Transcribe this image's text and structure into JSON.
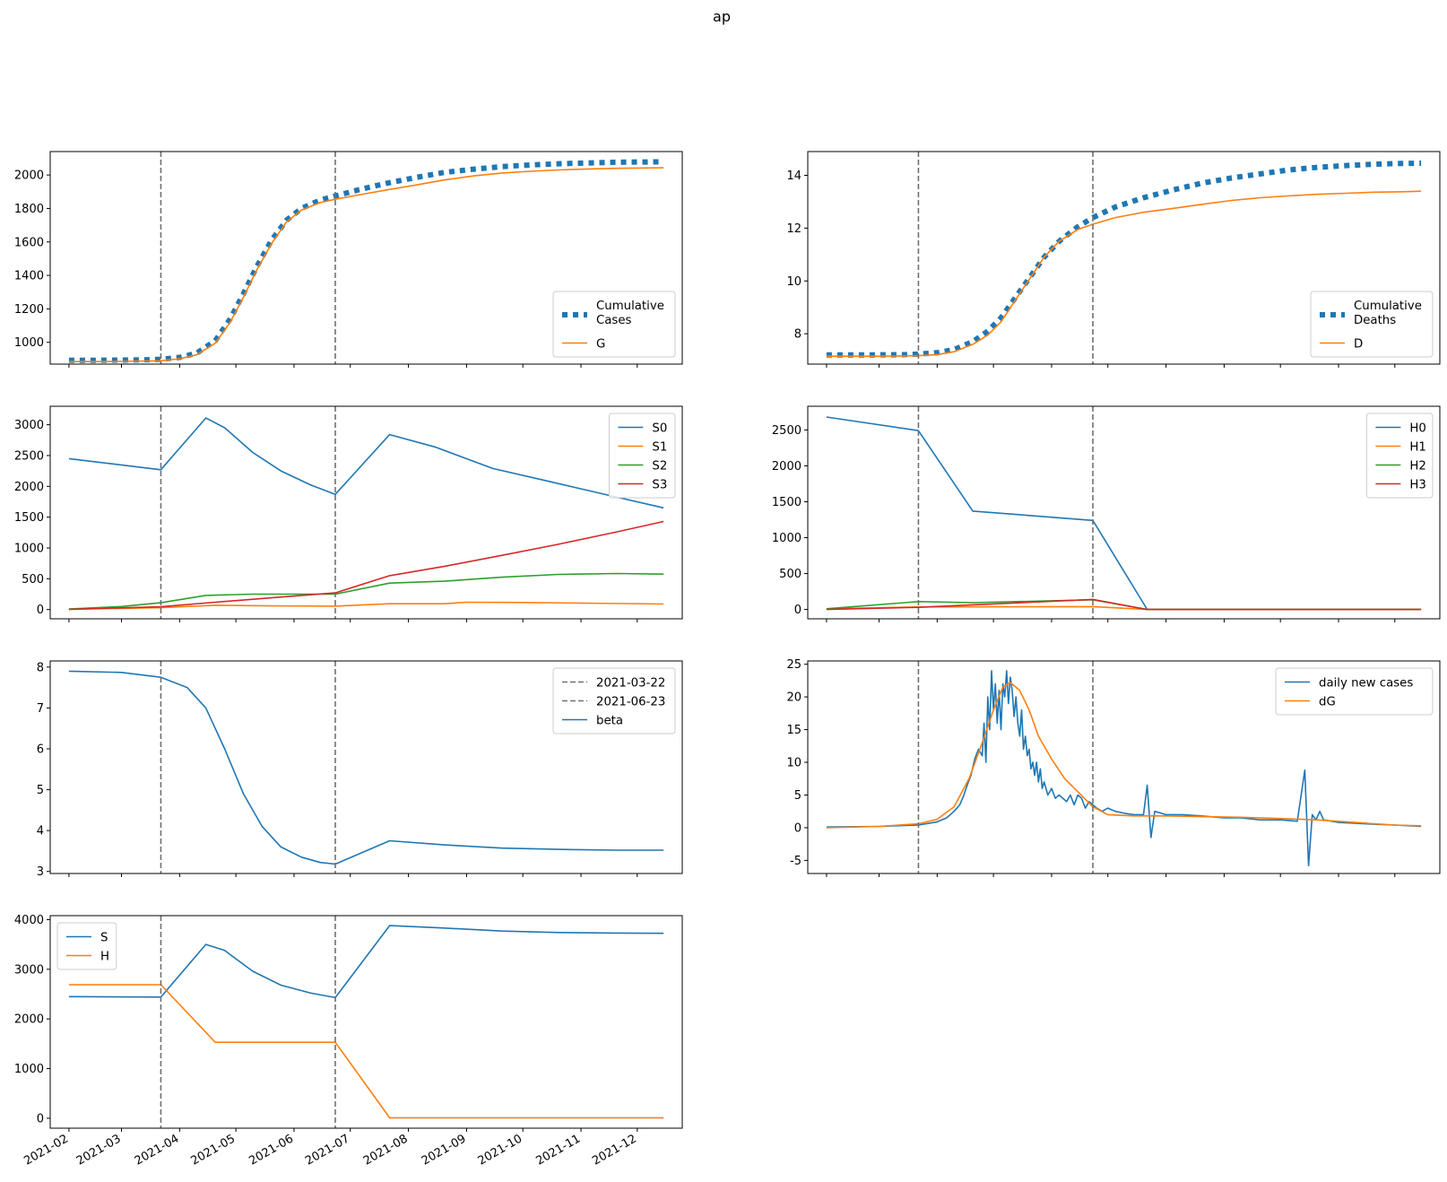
{
  "figure": {
    "title": "ap"
  },
  "colors": {
    "blue": "#1f77b4",
    "orange": "#ff7f0e",
    "green": "#2ca02c",
    "red": "#d62728",
    "vline": "#707070"
  },
  "vlines": [
    "2021-03-22",
    "2021-06-23"
  ],
  "chart_data": [
    {
      "id": "cases",
      "type": "line",
      "ylim": [
        870,
        2140
      ],
      "yticks": [
        1000,
        1200,
        1400,
        1600,
        1800,
        2000
      ],
      "legend_placement": "lower right",
      "series": [
        {
          "name": "Cumulative\nCases",
          "color": "blue",
          "style": "dotted-thick",
          "x": [
            "2021-02-01",
            "2021-02-15",
            "2021-03-01",
            "2021-03-15",
            "2021-03-22",
            "2021-04-01",
            "2021-04-10",
            "2021-04-20",
            "2021-04-28",
            "2021-05-05",
            "2021-05-12",
            "2021-05-20",
            "2021-05-28",
            "2021-06-05",
            "2021-06-15",
            "2021-06-23",
            "2021-07-05",
            "2021-07-20",
            "2021-08-05",
            "2021-08-20",
            "2021-09-05",
            "2021-09-20",
            "2021-10-05",
            "2021-10-20",
            "2021-11-05",
            "2021-11-20",
            "2021-12-05",
            "2021-12-15"
          ],
          "y": [
            893,
            893,
            894,
            896,
            899,
            910,
            935,
            1010,
            1140,
            1290,
            1450,
            1610,
            1730,
            1800,
            1850,
            1875,
            1910,
            1950,
            1985,
            2015,
            2035,
            2050,
            2060,
            2067,
            2072,
            2076,
            2078,
            2079
          ]
        },
        {
          "name": "G",
          "color": "orange",
          "style": "solid",
          "x": [
            "2021-02-01",
            "2021-02-15",
            "2021-03-01",
            "2021-03-15",
            "2021-03-22",
            "2021-04-01",
            "2021-04-10",
            "2021-04-20",
            "2021-04-28",
            "2021-05-05",
            "2021-05-12",
            "2021-05-20",
            "2021-05-28",
            "2021-06-05",
            "2021-06-15",
            "2021-06-23",
            "2021-07-05",
            "2021-07-20",
            "2021-08-05",
            "2021-08-20",
            "2021-09-05",
            "2021-09-20",
            "2021-10-05",
            "2021-10-20",
            "2021-11-05",
            "2021-11-20",
            "2021-12-05",
            "2021-12-15"
          ],
          "y": [
            885,
            885,
            886,
            888,
            890,
            902,
            925,
            995,
            1120,
            1270,
            1430,
            1590,
            1720,
            1790,
            1835,
            1855,
            1880,
            1910,
            1940,
            1970,
            1995,
            2012,
            2022,
            2030,
            2036,
            2040,
            2042,
            2043
          ]
        }
      ]
    },
    {
      "id": "deaths",
      "type": "line",
      "ylim": [
        6.85,
        14.9
      ],
      "yticks": [
        8,
        10,
        12,
        14
      ],
      "legend_placement": "lower right",
      "series": [
        {
          "name": "Cumulative\nDeaths",
          "color": "blue",
          "style": "dotted-thick",
          "x": [
            "2021-02-01",
            "2021-02-15",
            "2021-03-01",
            "2021-03-15",
            "2021-03-22",
            "2021-04-01",
            "2021-04-10",
            "2021-04-20",
            "2021-04-28",
            "2021-05-05",
            "2021-05-12",
            "2021-05-20",
            "2021-05-28",
            "2021-06-05",
            "2021-06-15",
            "2021-06-23",
            "2021-07-05",
            "2021-07-20",
            "2021-08-05",
            "2021-08-20",
            "2021-09-05",
            "2021-09-20",
            "2021-10-05",
            "2021-10-20",
            "2021-11-05",
            "2021-11-20",
            "2021-12-05",
            "2021-12-15"
          ],
          "y": [
            7.2,
            7.2,
            7.2,
            7.21,
            7.23,
            7.28,
            7.4,
            7.7,
            8.1,
            8.6,
            9.3,
            10.1,
            10.9,
            11.5,
            12.05,
            12.4,
            12.8,
            13.15,
            13.45,
            13.7,
            13.9,
            14.05,
            14.2,
            14.3,
            14.37,
            14.42,
            14.45,
            14.46
          ]
        },
        {
          "name": "D",
          "color": "orange",
          "style": "solid",
          "x": [
            "2021-02-01",
            "2021-02-15",
            "2021-03-01",
            "2021-03-15",
            "2021-03-22",
            "2021-04-01",
            "2021-04-10",
            "2021-04-20",
            "2021-04-28",
            "2021-05-05",
            "2021-05-12",
            "2021-05-20",
            "2021-05-28",
            "2021-06-05",
            "2021-06-15",
            "2021-06-23",
            "2021-07-05",
            "2021-07-20",
            "2021-08-05",
            "2021-08-20",
            "2021-09-05",
            "2021-09-20",
            "2021-10-05",
            "2021-10-20",
            "2021-11-05",
            "2021-11-20",
            "2021-12-05",
            "2021-12-15"
          ],
          "y": [
            7.15,
            7.15,
            7.15,
            7.16,
            7.17,
            7.21,
            7.32,
            7.6,
            7.95,
            8.45,
            9.2,
            10.05,
            10.9,
            11.5,
            11.95,
            12.15,
            12.4,
            12.6,
            12.75,
            12.9,
            13.05,
            13.15,
            13.22,
            13.28,
            13.32,
            13.36,
            13.38,
            13.4
          ]
        }
      ]
    },
    {
      "id": "S",
      "type": "line",
      "ylim": [
        -150,
        3300
      ],
      "yticks": [
        0,
        500,
        1000,
        1500,
        2000,
        2500,
        3000
      ],
      "legend_placement": "upper right",
      "series": [
        {
          "name": "S0",
          "color": "blue",
          "x": [
            "2021-02-01",
            "2021-03-22",
            "2021-04-15",
            "2021-04-25",
            "2021-05-10",
            "2021-05-25",
            "2021-06-10",
            "2021-06-23",
            "2021-07-22",
            "2021-08-15",
            "2021-09-15",
            "2021-10-15",
            "2021-11-15",
            "2021-12-15"
          ],
          "y": [
            2450,
            2270,
            3110,
            2950,
            2550,
            2250,
            2020,
            1870,
            2840,
            2640,
            2290,
            2080,
            1860,
            1650
          ]
        },
        {
          "name": "S1",
          "color": "orange",
          "x": [
            "2021-02-01",
            "2021-03-22",
            "2021-04-20",
            "2021-05-20",
            "2021-06-23",
            "2021-07-22",
            "2021-08-20",
            "2021-09-01",
            "2021-10-01",
            "2021-11-01",
            "2021-12-15"
          ],
          "y": [
            5,
            30,
            70,
            60,
            55,
            95,
            95,
            120,
            115,
            105,
            90
          ]
        },
        {
          "name": "S2",
          "color": "green",
          "x": [
            "2021-02-01",
            "2021-03-01",
            "2021-03-22",
            "2021-04-15",
            "2021-05-10",
            "2021-06-23",
            "2021-07-22",
            "2021-08-20",
            "2021-09-20",
            "2021-10-20",
            "2021-11-20",
            "2021-12-15"
          ],
          "y": [
            10,
            50,
            110,
            230,
            250,
            250,
            430,
            460,
            525,
            570,
            585,
            575
          ]
        },
        {
          "name": "S3",
          "color": "red",
          "x": [
            "2021-02-01",
            "2021-03-22",
            "2021-04-20",
            "2021-05-20",
            "2021-06-23",
            "2021-07-22",
            "2021-08-20",
            "2021-09-20",
            "2021-10-20",
            "2021-11-20",
            "2021-12-15"
          ],
          "y": [
            5,
            45,
            120,
            190,
            270,
            550,
            700,
            880,
            1060,
            1260,
            1430
          ]
        }
      ]
    },
    {
      "id": "H",
      "type": "line",
      "ylim": [
        -130,
        2830
      ],
      "yticks": [
        0,
        500,
        1000,
        1500,
        2000,
        2500
      ],
      "legend_placement": "upper right",
      "series": [
        {
          "name": "H0",
          "color": "blue",
          "x": [
            "2021-02-01",
            "2021-03-22",
            "2021-04-20",
            "2021-06-23",
            "2021-07-22",
            "2021-12-15"
          ],
          "y": [
            2680,
            2490,
            1370,
            1240,
            0,
            0
          ]
        },
        {
          "name": "H1",
          "color": "orange",
          "x": [
            "2021-02-01",
            "2021-03-22",
            "2021-06-23",
            "2021-07-22",
            "2021-12-15"
          ],
          "y": [
            10,
            35,
            40,
            0,
            0
          ]
        },
        {
          "name": "H2",
          "color": "green",
          "x": [
            "2021-02-01",
            "2021-03-22",
            "2021-04-20",
            "2021-06-23",
            "2021-07-22",
            "2021-12-15"
          ],
          "y": [
            10,
            110,
            95,
            135,
            0,
            0
          ]
        },
        {
          "name": "H3",
          "color": "red",
          "x": [
            "2021-02-01",
            "2021-03-22",
            "2021-06-23",
            "2021-07-22",
            "2021-12-15"
          ],
          "y": [
            0,
            30,
            140,
            0,
            0
          ]
        }
      ]
    },
    {
      "id": "beta",
      "type": "line",
      "ylim": [
        2.95,
        8.15
      ],
      "yticks": [
        3,
        4,
        5,
        6,
        7,
        8
      ],
      "legend_placement": "upper right",
      "series": [
        {
          "name": "beta",
          "color": "blue",
          "x": [
            "2021-02-01",
            "2021-03-01",
            "2021-03-22",
            "2021-04-05",
            "2021-04-15",
            "2021-04-25",
            "2021-05-05",
            "2021-05-15",
            "2021-05-25",
            "2021-06-05",
            "2021-06-15",
            "2021-06-23",
            "2021-07-22",
            "2021-08-20",
            "2021-09-20",
            "2021-10-20",
            "2021-11-20",
            "2021-12-15"
          ],
          "y": [
            7.9,
            7.87,
            7.75,
            7.5,
            7.0,
            6.0,
            4.9,
            4.1,
            3.6,
            3.35,
            3.22,
            3.18,
            3.75,
            3.65,
            3.57,
            3.54,
            3.52,
            3.52
          ]
        }
      ],
      "legend_entries": [
        {
          "name": "2021-03-22",
          "color": "vline",
          "style": "dashed"
        },
        {
          "name": "2021-06-23",
          "color": "vline",
          "style": "dashed"
        },
        {
          "name": "beta",
          "color": "blue",
          "style": "solid"
        }
      ]
    },
    {
      "id": "daily",
      "type": "line",
      "ylim": [
        -7,
        25.5
      ],
      "yticks": [
        -5,
        0,
        5,
        10,
        15,
        20,
        25
      ],
      "legend_placement": "upper right",
      "series": [
        {
          "name": "daily new cases",
          "color": "blue",
          "x": [
            "2021-02-01",
            "2021-03-01",
            "2021-03-22",
            "2021-04-01",
            "2021-04-06",
            "2021-04-10",
            "2021-04-13",
            "2021-04-15",
            "2021-04-17",
            "2021-04-19",
            "2021-04-21",
            "2021-04-23",
            "2021-04-25",
            "2021-04-26",
            "2021-04-27",
            "2021-04-28",
            "2021-04-29",
            "2021-04-30",
            "2021-05-01",
            "2021-05-02",
            "2021-05-03",
            "2021-05-04",
            "2021-05-05",
            "2021-05-06",
            "2021-05-07",
            "2021-05-08",
            "2021-05-09",
            "2021-05-10",
            "2021-05-11",
            "2021-05-12",
            "2021-05-13",
            "2021-05-14",
            "2021-05-15",
            "2021-05-16",
            "2021-05-17",
            "2021-05-18",
            "2021-05-19",
            "2021-05-20",
            "2021-05-21",
            "2021-05-22",
            "2021-05-23",
            "2021-05-24",
            "2021-05-25",
            "2021-05-26",
            "2021-05-27",
            "2021-05-28",
            "2021-05-30",
            "2021-06-01",
            "2021-06-03",
            "2021-06-05",
            "2021-06-07",
            "2021-06-09",
            "2021-06-11",
            "2021-06-13",
            "2021-06-15",
            "2021-06-17",
            "2021-06-19",
            "2021-06-21",
            "2021-06-23",
            "2021-06-25",
            "2021-06-28",
            "2021-07-01",
            "2021-07-05",
            "2021-07-10",
            "2021-07-15",
            "2021-07-20",
            "2021-07-22",
            "2021-07-24",
            "2021-07-26",
            "2021-08-01",
            "2021-08-10",
            "2021-08-20",
            "2021-09-01",
            "2021-09-10",
            "2021-09-20",
            "2021-10-01",
            "2021-10-10",
            "2021-10-14",
            "2021-10-16",
            "2021-10-18",
            "2021-10-20",
            "2021-10-22",
            "2021-10-24",
            "2021-11-01",
            "2021-11-15",
            "2021-12-01",
            "2021-12-15"
          ],
          "y": [
            0.1,
            0.2,
            0.4,
            0.9,
            1.5,
            2.5,
            3.5,
            4.8,
            6.5,
            8.0,
            10.5,
            12,
            11,
            16,
            10,
            20,
            15,
            24,
            18,
            22,
            16,
            21,
            15,
            22,
            20,
            24,
            19,
            23,
            21,
            17,
            20,
            16,
            14,
            18,
            12,
            14,
            11,
            12,
            9,
            10,
            8,
            10,
            7,
            9,
            6,
            7,
            5,
            6,
            4.5,
            5,
            4.5,
            4,
            5,
            3.5,
            5,
            4.5,
            3,
            4,
            3.5,
            3,
            2.5,
            3,
            2.5,
            2.2,
            2,
            2,
            6.5,
            -1.5,
            2.5,
            2,
            2,
            1.8,
            1.5,
            1.5,
            1.2,
            1.2,
            1.0,
            8.8,
            -5.8,
            2.0,
            1.2,
            2.5,
            1.2,
            0.8,
            0.6,
            0.4,
            0.2
          ]
        },
        {
          "name": "dG",
          "color": "orange",
          "x": [
            "2021-02-01",
            "2021-03-01",
            "2021-03-22",
            "2021-04-01",
            "2021-04-10",
            "2021-04-18",
            "2021-04-25",
            "2021-05-01",
            "2021-05-06",
            "2021-05-10",
            "2021-05-15",
            "2021-05-20",
            "2021-05-25",
            "2021-06-01",
            "2021-06-08",
            "2021-06-15",
            "2021-06-23",
            "2021-07-01",
            "2021-07-15",
            "2021-08-01",
            "2021-08-20",
            "2021-09-10",
            "2021-10-01",
            "2021-10-20",
            "2021-11-10",
            "2021-12-01",
            "2021-12-15"
          ],
          "y": [
            0,
            0.2,
            0.6,
            1.3,
            3.2,
            7.5,
            13,
            18,
            21.5,
            22.2,
            21,
            18,
            14,
            10.5,
            7.5,
            5.5,
            3.2,
            2.0,
            1.8,
            1.8,
            1.7,
            1.6,
            1.4,
            1.2,
            0.8,
            0.4,
            0.3
          ]
        }
      ]
    },
    {
      "id": "SH",
      "type": "line",
      "ylim": [
        -200,
        4080
      ],
      "yticks": [
        0,
        1000,
        2000,
        3000,
        4000
      ],
      "legend_placement": "upper left",
      "xtick_labels": [
        "2021-02",
        "2021-03",
        "2021-04",
        "2021-05",
        "2021-06",
        "2021-07",
        "2021-08",
        "2021-09",
        "2021-10",
        "2021-11",
        "2021-12"
      ],
      "series": [
        {
          "name": "S",
          "color": "blue",
          "x": [
            "2021-02-01",
            "2021-03-22",
            "2021-04-15",
            "2021-04-25",
            "2021-05-10",
            "2021-05-25",
            "2021-06-10",
            "2021-06-23",
            "2021-07-22",
            "2021-08-20",
            "2021-09-20",
            "2021-10-20",
            "2021-11-20",
            "2021-12-15"
          ],
          "y": [
            2450,
            2440,
            3500,
            3380,
            2960,
            2680,
            2520,
            2430,
            3880,
            3830,
            3770,
            3740,
            3730,
            3725
          ]
        },
        {
          "name": "H",
          "color": "orange",
          "x": [
            "2021-02-01",
            "2021-03-22",
            "2021-04-20",
            "2021-06-23",
            "2021-07-22",
            "2021-12-15"
          ],
          "y": [
            2690,
            2690,
            1530,
            1530,
            10,
            10
          ]
        }
      ]
    }
  ]
}
